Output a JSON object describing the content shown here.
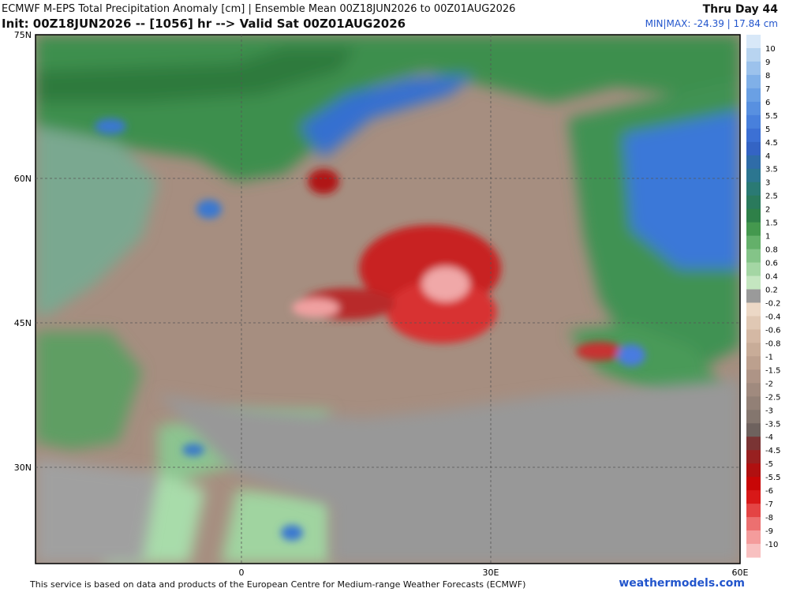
{
  "header": {
    "title": "ECMWF M-EPS Total Precipitation Anomaly [cm] | Ensemble Mean 00Z18JUN2026 to 00Z01AUG2026",
    "subtitle": "Init: 00Z18JUN2026 -- [1056] hr --> Valid Sat 00Z01AUG2026",
    "period": "Thru Day 44",
    "minmax": "MIN|MAX: -24.39 | 17.84 cm"
  },
  "map": {
    "lat_labels": [
      "75N",
      "60N",
      "45N",
      "30N"
    ],
    "lon_labels": [
      "0",
      "30E",
      "60E"
    ]
  },
  "colorbar": {
    "labels": [
      "10",
      "9",
      "8",
      "7",
      "6",
      "5.5",
      "5",
      "4.5",
      "4",
      "3.5",
      "3",
      "2.5",
      "2",
      "1.5",
      "1",
      "0.8",
      "0.6",
      "0.4",
      "0.2",
      "-0.2",
      "-0.4",
      "-0.6",
      "-0.8",
      "-1",
      "-1.5",
      "-2",
      "-2.5",
      "-3",
      "-3.5",
      "-4",
      "-4.5",
      "-5",
      "-5.5",
      "-6",
      "-7",
      "-8",
      "-9",
      "-10"
    ],
    "colors": [
      "#d8e8f8",
      "#b8d4f0",
      "#9cc2ec",
      "#80b0e8",
      "#6aa0e4",
      "#5890e0",
      "#4880dc",
      "#3c70d4",
      "#3464c4",
      "#2f6ca8",
      "#2c7690",
      "#2a7a74",
      "#2a7a5c",
      "#2e8048",
      "#44984e",
      "#64b06a",
      "#84c488",
      "#a4d6a4",
      "#c4e6c0",
      "#9a9a9a",
      "#ecd8c6",
      "#e0c8b4",
      "#d4b8a4",
      "#c8ac98",
      "#bca08e",
      "#ae9486",
      "#a08a7e",
      "#928076",
      "#84766e",
      "#6e625e",
      "#7a3434",
      "#982020",
      "#b01010",
      "#c80606",
      "#d81818",
      "#e44444",
      "#ec7070",
      "#f49c9c",
      "#f8c0c0"
    ]
  },
  "footer": {
    "credit": "This service is based on data and products of the European Centre for Medium-range Weather Forecasts (ECMWF)",
    "site": "weathermodels.com"
  }
}
